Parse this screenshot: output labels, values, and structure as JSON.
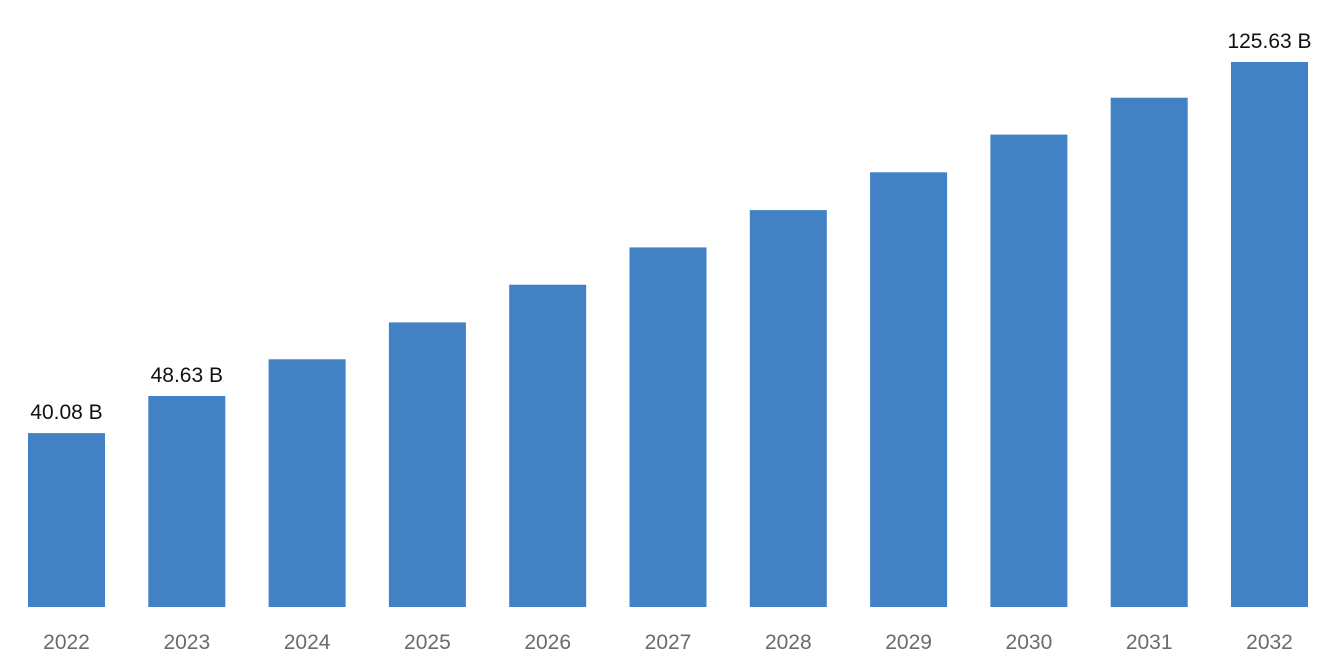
{
  "chart_data": {
    "type": "bar",
    "title": "",
    "xlabel": "",
    "ylabel": "",
    "categories": [
      "2022",
      "2023",
      "2024",
      "2025",
      "2026",
      "2027",
      "2028",
      "2029",
      "2030",
      "2031",
      "2032"
    ],
    "values": [
      40.08,
      48.63,
      57.1,
      65.6,
      74.3,
      82.9,
      91.5,
      100.2,
      108.9,
      117.4,
      125.63
    ],
    "data_labels": [
      "40.08 B",
      "48.63 B",
      "",
      "",
      "",
      "",
      "",
      "",
      "",
      "",
      "125.63 B"
    ],
    "ylim": [
      0,
      125.63
    ],
    "grid": false,
    "legend": "none",
    "colors": {
      "bar": "#4282c4",
      "tick_text": "#6b6b6b",
      "label_text": "#111111"
    }
  }
}
